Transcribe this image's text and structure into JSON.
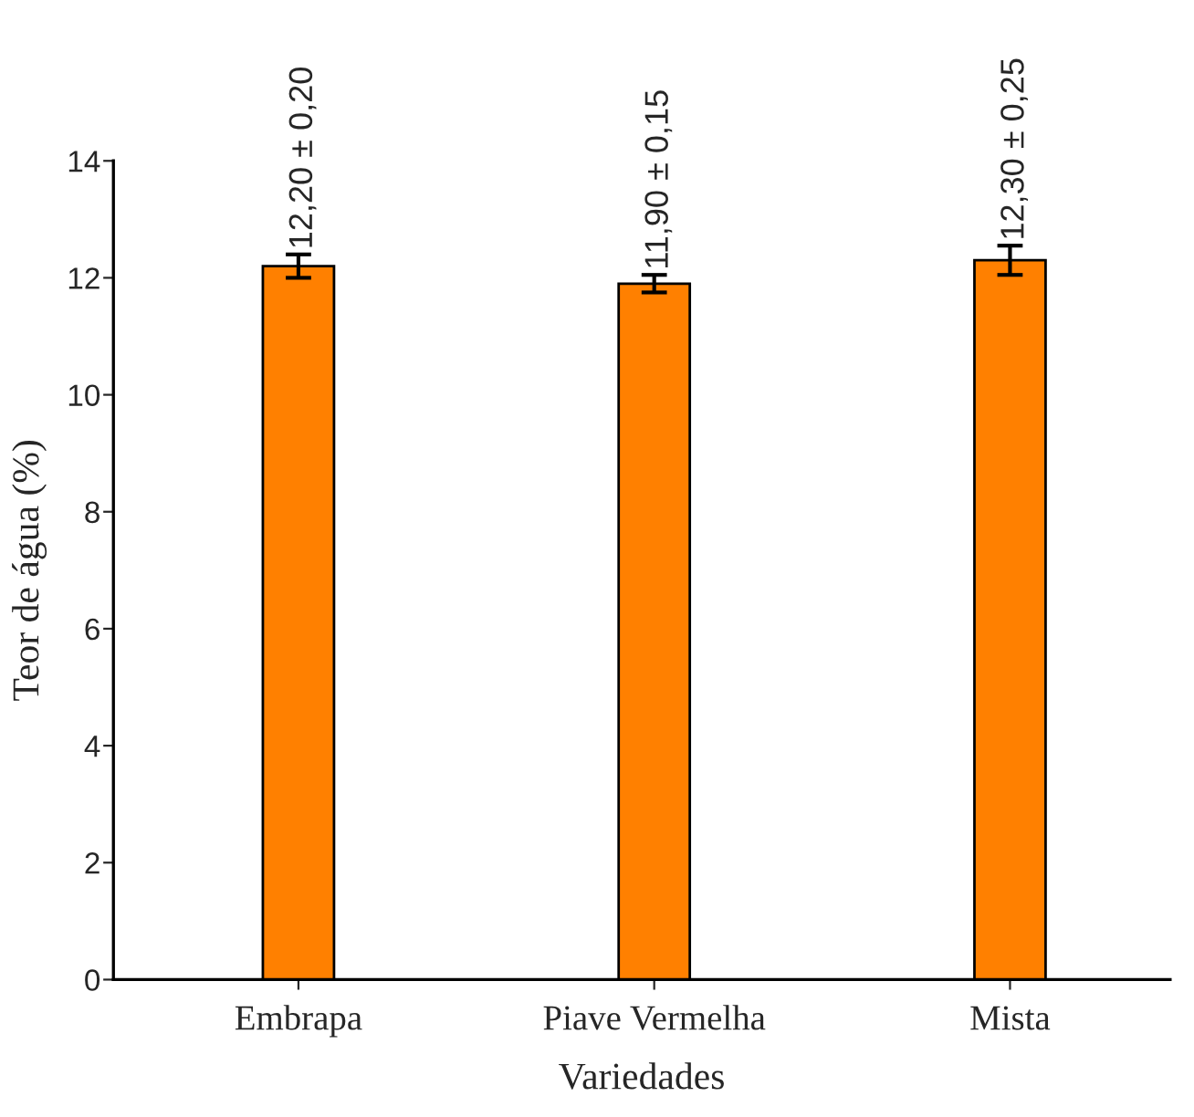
{
  "chart_data": {
    "type": "bar",
    "xlabel": "Variedades",
    "ylabel": "Teor de água (%)",
    "categories": [
      "Embrapa",
      "Piave Vermelha",
      "Mista"
    ],
    "values": [
      12.2,
      11.9,
      12.3
    ],
    "errors": [
      0.2,
      0.15,
      0.25
    ],
    "value_labels": [
      "12,20 ± 0,20",
      "11,90 ± 0,15",
      "12,30 ± 0,25"
    ],
    "color": "#ff8000",
    "ylim": [
      0,
      14
    ],
    "yticks": [
      0,
      2,
      4,
      6,
      8,
      10,
      12,
      14
    ],
    "grid": false,
    "legend": false
  }
}
